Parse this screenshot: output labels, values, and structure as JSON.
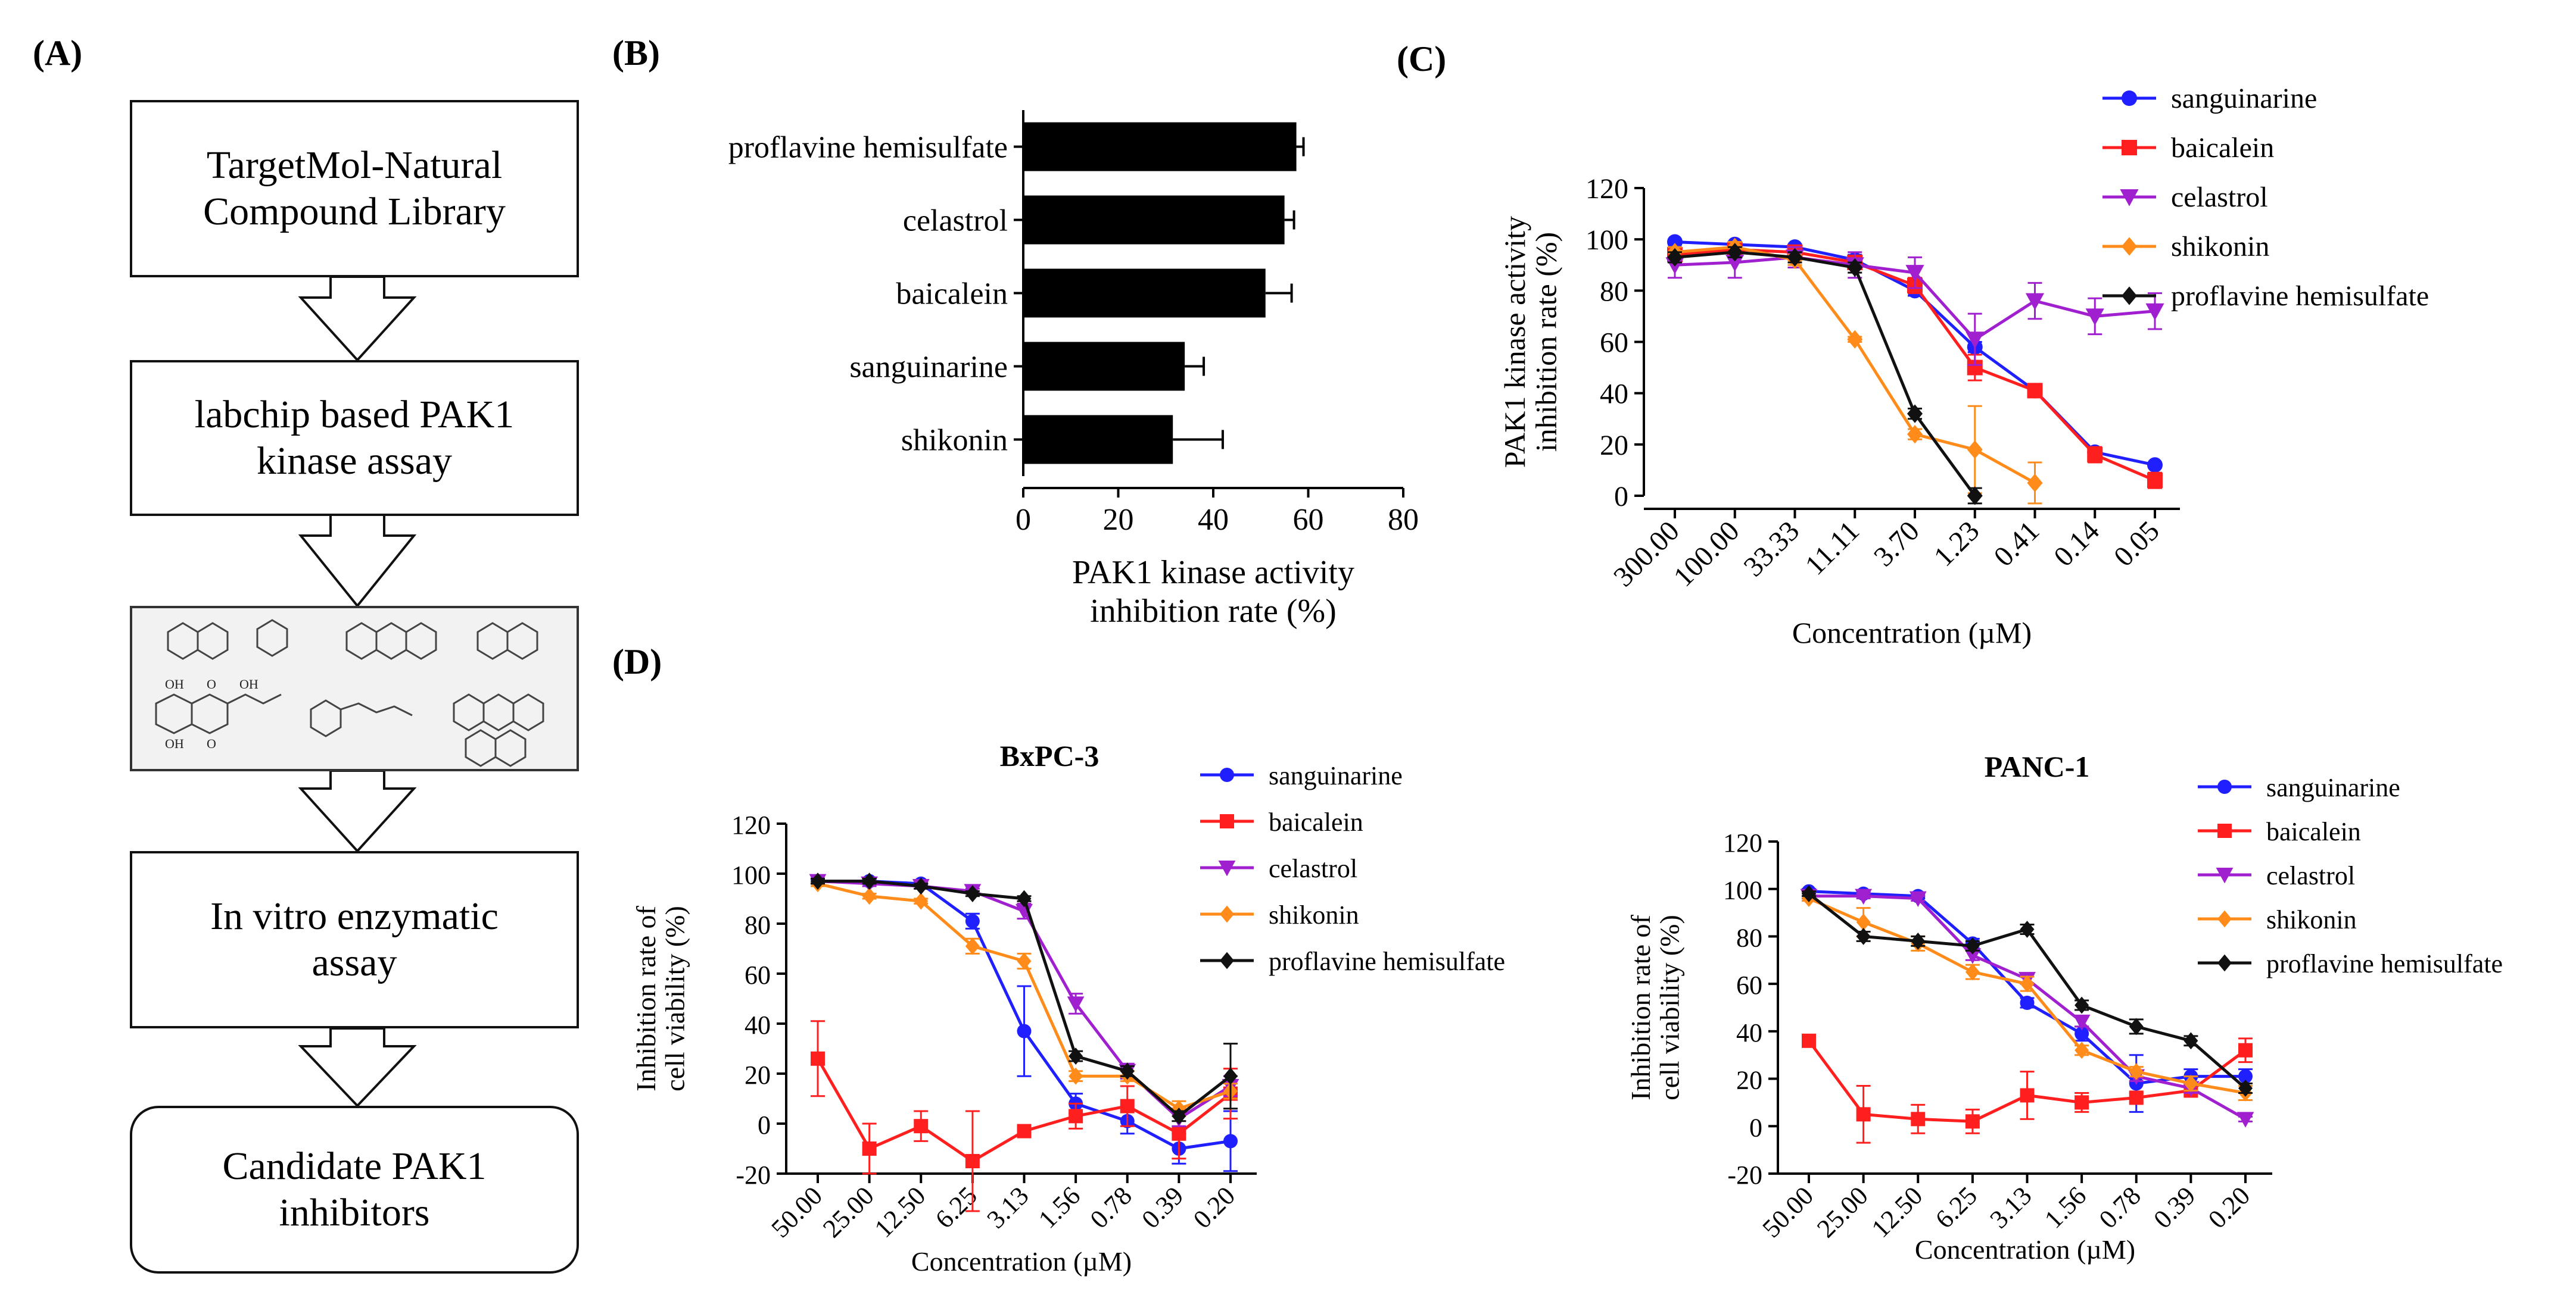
{
  "panels": {
    "a": "(A)",
    "b": "(B)",
    "c": "(C)",
    "d": "(D)"
  },
  "flowchart": {
    "steps": [
      "TargetMol-Natural\nCompound Library",
      "labchip based PAK1\nkinase assay",
      "In vitro enzymatic\nassay",
      "Candidate PAK1\ninhibitors"
    ],
    "structure_labels": [
      "OH",
      "O",
      "OH",
      "O",
      "OH"
    ]
  },
  "colors": {
    "sanguinarine": "#1f1fff",
    "baicalein": "#ff1f1f",
    "celastrol": "#a020d0",
    "shikonin": "#ff8c1a",
    "proflavine": "#111111",
    "bar": "#000000"
  },
  "chart_data": [
    {
      "id": "B",
      "type": "bar",
      "orientation": "horizontal",
      "categories": [
        "proflavine hemisulfate",
        "celastrol",
        "baicalein",
        "sanguinarine",
        "shikonin"
      ],
      "values": [
        57.5,
        55,
        51,
        34,
        31.5
      ],
      "errors": [
        1.5,
        2,
        5.5,
        4,
        10.5
      ],
      "xlabel": [
        "PAK1 kinase activity",
        "inhibition rate  (%)"
      ],
      "xlim": [
        0,
        80
      ],
      "xticks": [
        "0",
        "20",
        "40",
        "60",
        "80"
      ]
    },
    {
      "id": "C",
      "type": "line",
      "categories": [
        "300.00",
        "100.00",
        "33.33",
        "11.11",
        "3.70",
        "1.23",
        "0.41",
        "0.14",
        "0.05"
      ],
      "ylabel": [
        "PAK1 kinase activity",
        "inhibition rate  (%)"
      ],
      "xlabel": "Concentration (µM)",
      "ylim": [
        0,
        120
      ],
      "yticks": [
        "0",
        "20",
        "40",
        "60",
        "80",
        "100",
        "120"
      ],
      "series": [
        {
          "name": "sanguinarine",
          "key": "sanguinarine",
          "marker": "circle",
          "values": [
            99,
            98,
            97,
            92,
            80,
            58,
            41,
            17,
            12
          ],
          "errors": [
            1,
            1,
            1,
            2,
            2,
            2,
            2,
            2,
            1
          ]
        },
        {
          "name": "baicalein",
          "key": "baicalein",
          "marker": "square",
          "values": [
            94,
            96,
            95,
            91,
            82,
            50,
            41,
            16,
            6
          ],
          "errors": [
            2,
            2,
            2,
            2,
            3,
            5,
            2,
            3,
            3
          ]
        },
        {
          "name": "celastrol",
          "key": "celastrol",
          "marker": "triangle",
          "values": [
            90,
            91,
            93,
            90,
            87,
            61,
            76,
            70,
            72
          ],
          "errors": [
            5,
            6,
            4,
            5,
            6,
            10,
            7,
            7,
            7
          ]
        },
        {
          "name": "shikonin",
          "key": "shikonin",
          "marker": "diamond",
          "values": [
            95,
            97,
            92,
            61,
            24,
            18,
            5,
            null,
            null
          ],
          "errors": [
            2,
            2,
            2,
            1,
            2,
            17,
            8,
            0,
            0
          ]
        },
        {
          "name": "proflavine hemisulfate",
          "key": "proflavine",
          "marker": "diamond",
          "values": [
            93,
            95,
            93,
            89,
            32,
            0,
            null,
            null,
            null
          ],
          "errors": [
            2,
            2,
            2,
            2,
            2,
            3,
            0,
            0,
            0
          ]
        }
      ]
    },
    {
      "id": "D1",
      "type": "line",
      "title": "BxPC-3",
      "categories": [
        "50.00",
        "25.00",
        "12.50",
        "6.25",
        "3.13",
        "1.56",
        "0.78",
        "0.39",
        "0.20"
      ],
      "ylabel": [
        "Inhibition rate of",
        "cell viability (%)"
      ],
      "xlabel": "Concentration (µM)",
      "ylim": [
        -20,
        120
      ],
      "yticks": [
        "-20",
        "0",
        "20",
        "40",
        "60",
        "80",
        "100",
        "120"
      ],
      "series": [
        {
          "name": "sanguinarine",
          "key": "sanguinarine",
          "marker": "circle",
          "values": [
            97,
            97,
            96,
            81,
            37,
            8,
            1,
            -10,
            -7
          ],
          "errors": [
            1,
            1,
            1,
            3,
            18,
            4,
            5,
            6,
            12
          ]
        },
        {
          "name": "baicalein",
          "key": "baicalein",
          "marker": "square",
          "values": [
            26,
            -10,
            -1,
            -15,
            -3,
            3,
            7,
            -4,
            12
          ],
          "errors": [
            15,
            10,
            6,
            20,
            2,
            5,
            8,
            10,
            10
          ]
        },
        {
          "name": "celastrol",
          "key": "celastrol",
          "marker": "triangle",
          "values": [
            97,
            96,
            95,
            93,
            85,
            48,
            21,
            2,
            15
          ],
          "errors": [
            1,
            1,
            1,
            1,
            3,
            4,
            3,
            3,
            4
          ]
        },
        {
          "name": "shikonin",
          "key": "shikonin",
          "marker": "diamond",
          "values": [
            96,
            91,
            89,
            71,
            65,
            19,
            19,
            6,
            13
          ],
          "errors": [
            1,
            1,
            1,
            3,
            3,
            2,
            2,
            3,
            3
          ]
        },
        {
          "name": "proflavine hemisulfate",
          "key": "proflavine",
          "marker": "diamond",
          "values": [
            97,
            97,
            95,
            92,
            90,
            27,
            21,
            3,
            19
          ],
          "errors": [
            1,
            1,
            1,
            1,
            1,
            2,
            2,
            2,
            13
          ]
        }
      ]
    },
    {
      "id": "D2",
      "type": "line",
      "title": "PANC-1",
      "categories": [
        "50.00",
        "25.00",
        "12.50",
        "6.25",
        "3.13",
        "1.56",
        "0.78",
        "0.39",
        "0.20"
      ],
      "ylabel": [
        "Inhibition rate of",
        "cell viability (%)"
      ],
      "xlabel": "Concentration (µM)",
      "ylim": [
        -20,
        120
      ],
      "yticks": [
        "-20",
        "0",
        "20",
        "40",
        "60",
        "80",
        "100",
        "120"
      ],
      "series": [
        {
          "name": "sanguinarine",
          "key": "sanguinarine",
          "marker": "circle",
          "values": [
            99,
            98,
            97,
            77,
            52,
            39,
            18,
            21,
            21
          ],
          "errors": [
            1,
            1,
            1,
            2,
            2,
            3,
            12,
            3,
            3
          ]
        },
        {
          "name": "baicalein",
          "key": "baicalein",
          "marker": "square",
          "values": [
            36,
            5,
            3,
            2,
            13,
            10,
            12,
            15,
            32
          ],
          "errors": [
            2,
            12,
            6,
            5,
            10,
            4,
            2,
            2,
            5
          ]
        },
        {
          "name": "celastrol",
          "key": "celastrol",
          "marker": "triangle",
          "values": [
            97,
            97,
            96,
            72,
            62,
            44,
            21,
            16,
            3
          ],
          "errors": [
            1,
            1,
            1,
            2,
            2,
            2,
            2,
            2,
            1
          ]
        },
        {
          "name": "shikonin",
          "key": "shikonin",
          "marker": "diamond",
          "values": [
            96,
            86,
            77,
            65,
            60,
            32,
            23,
            18,
            14
          ],
          "errors": [
            1,
            6,
            3,
            3,
            3,
            2,
            2,
            3,
            3
          ]
        },
        {
          "name": "proflavine hemisulfate",
          "key": "proflavine",
          "marker": "diamond",
          "values": [
            98,
            80,
            78,
            76,
            83,
            51,
            42,
            36,
            16
          ],
          "errors": [
            1,
            2,
            2,
            2,
            2,
            2,
            3,
            2,
            2
          ]
        }
      ]
    }
  ]
}
